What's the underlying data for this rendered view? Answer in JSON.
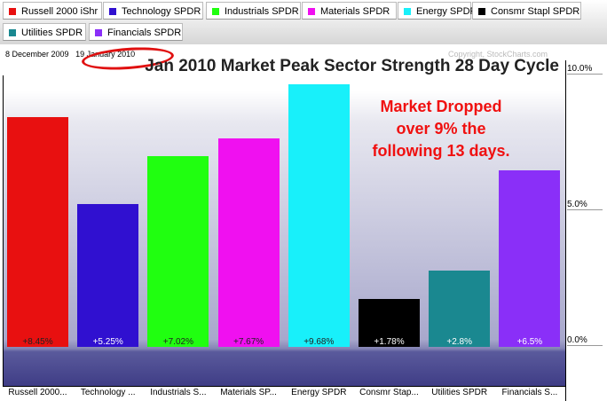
{
  "legend": [
    {
      "label": "Russell 2000 iShr",
      "color": "#e81010"
    },
    {
      "label": "Technology SPDR",
      "color": "#3010d0"
    },
    {
      "label": "Industrials SPDR",
      "color": "#20ff10"
    },
    {
      "label": "Materials SPDR",
      "color": "#f010f0"
    },
    {
      "label": "Energy SPDR",
      "color": "#18f0fa"
    },
    {
      "label": "Consmr Stapl SPDR",
      "color": "#000000"
    },
    {
      "label": "Utilities SPDR",
      "color": "#1a8890"
    },
    {
      "label": "Financials SPDR",
      "color": "#8a2ff8"
    }
  ],
  "header": {
    "start_date": "8 December 2009",
    "end_date": "19 January 2010",
    "copyright": "Copyright, StockCharts.com"
  },
  "annotation": [
    "Market Dropped",
    "over 9% the",
    "following 13 days."
  ],
  "chart_data": {
    "type": "bar",
    "title": "Jan 2010 Market Peak Sector Strength  28 Day Cycle",
    "categories": [
      "Russell 2000...",
      "Technology ...",
      "Industrials S...",
      "Materials SP...",
      "Energy SPDR",
      "Consmr Stap...",
      "Utilities SPDR",
      "Financials S..."
    ],
    "values": [
      8.45,
      5.25,
      7.02,
      7.67,
      9.68,
      1.78,
      2.8,
      6.5
    ],
    "value_labels": [
      "+8.45%",
      "+5.25%",
      "+7.02%",
      "+7.67%",
      "+9.68%",
      "+1.78%",
      "+2.8%",
      "+6.5%"
    ],
    "colors": [
      "#e81010",
      "#3010d0",
      "#20ff10",
      "#f010f0",
      "#18f0fa",
      "#000000",
      "#1a8890",
      "#8a2ff8"
    ],
    "y_ticks": [
      {
        "value": 10,
        "label": "10.0%"
      },
      {
        "value": 5,
        "label": "5.0%"
      },
      {
        "value": 0,
        "label": "0.0%"
      }
    ],
    "ylim": [
      -1.4,
      10
    ],
    "axis_side": "right"
  }
}
